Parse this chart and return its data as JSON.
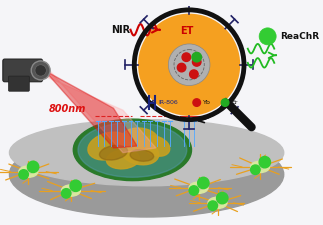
{
  "figsize": [
    3.23,
    2.25
  ],
  "dpi": 100,
  "bg_color": "#f5f5f8",
  "nir_label": "NIR",
  "nm_label": "800nm",
  "et_label": "ET",
  "reachr_label": "ReaChR",
  "disk_color_top": "#c0c0c0",
  "disk_color_side": "#9a9a9a",
  "neuron_color": "#e8a020",
  "neuron_body_color": "#d8e8a0",
  "laser_red": "#dd1111",
  "laser_pink": "#ffaaaa",
  "mag_orange": "#f5a020",
  "mag_ring_color": "#111111",
  "core_gray": "#b0b0b0",
  "wave_red": "#cc0000",
  "wave_green": "#22bb22",
  "reachr_green": "#33cc33",
  "channel_blue": "#55aaff",
  "channel_red": "#dd2222",
  "arm_color": "#222266",
  "dot_red": "#cc1111",
  "dot_green": "#22aa22",
  "legend_blue": "#1a237e"
}
